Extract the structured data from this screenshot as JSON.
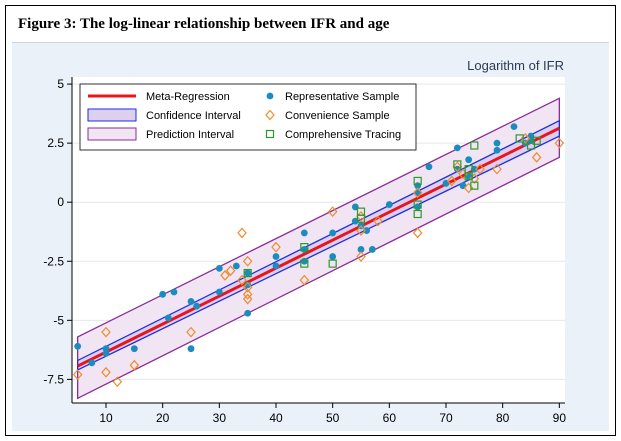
{
  "figure_title": "Figure 3: The log-linear relationship between IFR and age",
  "chart_data": {
    "type": "scatter",
    "title": "Logarithm of IFR",
    "xlabel": "",
    "ylabel": "",
    "xlim": [
      4,
      91
    ],
    "ylim": [
      -8.5,
      5.3
    ],
    "xticks": [
      10,
      20,
      30,
      40,
      50,
      60,
      70,
      80,
      90
    ],
    "yticks": [
      5,
      2.5,
      0,
      -2.5,
      -5,
      -7.5
    ],
    "ytick_labels": [
      "5",
      "2.5",
      "0",
      "-2.5",
      "-5",
      "-7.5"
    ],
    "grid": true,
    "legend_position": "top-left",
    "legend": {
      "meta_regression": "Meta-Regression",
      "confidence_interval": "Confidence Interval",
      "prediction_interval": "Prediction Interval",
      "representative": "Representative Sample",
      "convenience": "Convenience Sample",
      "comprehensive": "Comprehensive Tracing"
    },
    "colors": {
      "meta_regression": "#e8141e",
      "confidence_band": "#1c2ee0",
      "prediction_band": "#8a2c9a",
      "prediction_fill": "#f2e5f3",
      "confidence_fill": "#ddd0ee",
      "representative": "#1a8cbf",
      "convenience": "#ee8c2c",
      "comprehensive": "#2a9a2a",
      "plot_bg": "#ffffff",
      "outer_bg": "#eaf1f8",
      "grid": "#e2e8ef"
    },
    "regression": {
      "intercept": -7.53,
      "slope": 0.1185
    },
    "confidence_band": {
      "lower": [
        [
          5,
          -7.1
        ],
        [
          90,
          2.8
        ]
      ],
      "upper": [
        [
          5,
          -6.7
        ],
        [
          90,
          3.45
        ]
      ]
    },
    "prediction_band": {
      "lower": [
        [
          5,
          -8.3
        ],
        [
          90,
          1.9
        ]
      ],
      "upper": [
        [
          5,
          -5.7
        ],
        [
          90,
          4.4
        ]
      ]
    },
    "series": [
      {
        "name": "Representative Sample",
        "marker": "circle",
        "points": [
          [
            5,
            -6.1
          ],
          [
            7.5,
            -6.8
          ],
          [
            10,
            -6.4
          ],
          [
            10,
            -6.2
          ],
          [
            15,
            -6.2
          ],
          [
            20,
            -3.9
          ],
          [
            21,
            -4.9
          ],
          [
            22,
            -3.8
          ],
          [
            25,
            -4.2
          ],
          [
            25,
            -6.2
          ],
          [
            26,
            -4.4
          ],
          [
            30,
            -2.8
          ],
          [
            30,
            -3.8
          ],
          [
            33,
            -2.7
          ],
          [
            35,
            -3.0
          ],
          [
            35,
            -4.7
          ],
          [
            35,
            -3.5
          ],
          [
            40,
            -2.3
          ],
          [
            40,
            -2.7
          ],
          [
            45,
            -1.3
          ],
          [
            45,
            -2.0
          ],
          [
            45,
            -2.5
          ],
          [
            50,
            -1.3
          ],
          [
            50,
            -2.3
          ],
          [
            54,
            -0.2
          ],
          [
            54,
            -0.8
          ],
          [
            55,
            -1.0
          ],
          [
            55,
            -2.0
          ],
          [
            56,
            -1.2
          ],
          [
            57,
            -2.0
          ],
          [
            60,
            -0.1
          ],
          [
            65,
            0.7
          ],
          [
            65,
            0.4
          ],
          [
            65,
            -0.2
          ],
          [
            67,
            1.5
          ],
          [
            70,
            0.8
          ],
          [
            72,
            1.4
          ],
          [
            72,
            2.3
          ],
          [
            73,
            0.7
          ],
          [
            74,
            1.8
          ],
          [
            74,
            1.1
          ],
          [
            75,
            1.4
          ],
          [
            79,
            2.5
          ],
          [
            79,
            2.2
          ],
          [
            82,
            3.2
          ],
          [
            84,
            2.5
          ],
          [
            85,
            2.6
          ],
          [
            85,
            2.8
          ]
        ]
      },
      {
        "name": "Convenience Sample",
        "marker": "diamond",
        "points": [
          [
            5,
            -7.3
          ],
          [
            10,
            -5.5
          ],
          [
            10,
            -7.2
          ],
          [
            12,
            -7.6
          ],
          [
            15,
            -6.9
          ],
          [
            25,
            -5.5
          ],
          [
            31,
            -3.1
          ],
          [
            32,
            -2.9
          ],
          [
            34,
            -1.3
          ],
          [
            34,
            -3.3
          ],
          [
            35,
            -3.6
          ],
          [
            35,
            -3.9
          ],
          [
            35,
            -4.1
          ],
          [
            35,
            -2.5
          ],
          [
            40,
            -1.9
          ],
          [
            45,
            -3.3
          ],
          [
            50,
            -0.4
          ],
          [
            55,
            -0.6
          ],
          [
            55,
            -1.2
          ],
          [
            55,
            -2.3
          ],
          [
            58,
            -0.8
          ],
          [
            65,
            0.4
          ],
          [
            65,
            -1.3
          ],
          [
            71,
            0.9
          ],
          [
            72,
            1.5
          ],
          [
            73,
            1.2
          ],
          [
            74,
            0.6
          ],
          [
            75,
            1.0
          ],
          [
            76,
            1.4
          ],
          [
            79,
            1.4
          ],
          [
            84,
            2.7
          ],
          [
            86,
            1.9
          ],
          [
            90,
            2.5
          ]
        ]
      },
      {
        "name": "Comprehensive Tracing",
        "marker": "square",
        "points": [
          [
            35,
            -3.0
          ],
          [
            45,
            -1.9
          ],
          [
            45,
            -2.6
          ],
          [
            50,
            -2.6
          ],
          [
            55,
            -0.4
          ],
          [
            55,
            -0.7
          ],
          [
            65,
            0.9
          ],
          [
            65,
            -0.1
          ],
          [
            65,
            -0.5
          ],
          [
            72,
            1.6
          ],
          [
            74,
            1.4
          ],
          [
            74,
            1.1
          ],
          [
            75,
            2.4
          ],
          [
            75,
            0.7
          ],
          [
            83,
            2.7
          ],
          [
            85,
            2.4
          ],
          [
            86,
            2.6
          ]
        ]
      }
    ]
  }
}
